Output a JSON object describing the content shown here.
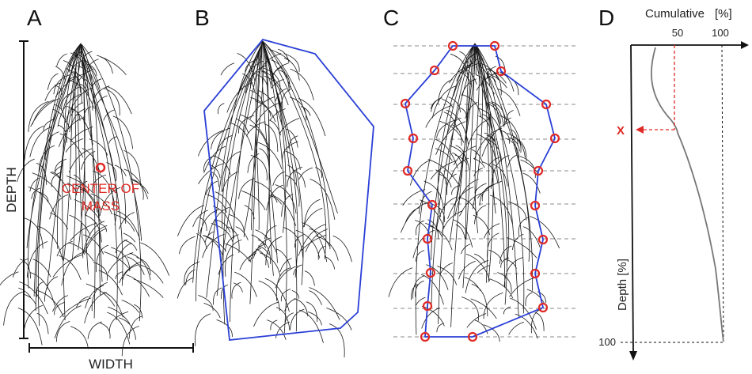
{
  "panels": {
    "a": {
      "letter": "A",
      "depth_label": "DEPTH",
      "width_label": "WIDTH",
      "center_label_line1": "CENTER OF",
      "center_label_line2": "MASS"
    },
    "b": {
      "letter": "B"
    },
    "c": {
      "letter": "C"
    },
    "d": {
      "letter": "D",
      "cumulative_label": "Cumulative",
      "cumulative_unit": "[%]",
      "depth_axis_label": "Depth [%]",
      "tick_50": "50",
      "tick_100": "100",
      "depth_100": "100",
      "x_marker": "X"
    }
  },
  "colors": {
    "root": "#1a1a1a",
    "hull": "#2a3fd6",
    "marker": "#e02a25",
    "curve": "#777777",
    "grid": "#888888"
  }
}
